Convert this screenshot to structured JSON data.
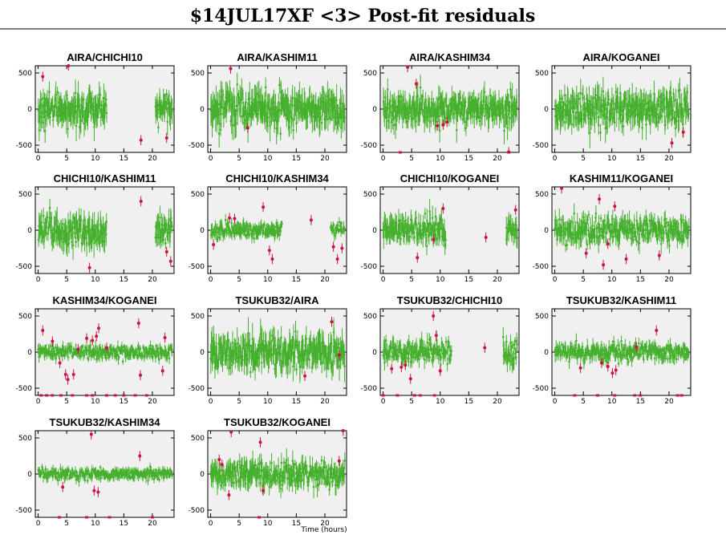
{
  "page": {
    "title": "$14JUL17XF <3> Post-fit residuals"
  },
  "chart_data": {
    "type": "scatter",
    "xlabel": "Time (hours)",
    "xticks": [
      0,
      5,
      10,
      15,
      20
    ],
    "yticks": [
      -500,
      0,
      500
    ],
    "xlim": [
      -0.5,
      23.8
    ],
    "ylim": [
      -600,
      600
    ],
    "grid": false,
    "background": "#f0f0f0",
    "colors": {
      "good": "#44b02c",
      "flagged": "#cc1144"
    },
    "panels": [
      {
        "title": "AIRA/CHICHI10",
        "segments": [
          [
            0,
            12,
            320
          ],
          [
            20.5,
            23.5,
            280
          ]
        ],
        "outliers": [
          [
            0.8,
            450
          ],
          [
            5.3,
            600
          ],
          [
            18,
            -430
          ],
          [
            22.5,
            -400
          ]
        ],
        "edge_bottom": []
      },
      {
        "title": "AIRA/KASHIM11",
        "segments": [
          [
            0,
            23.5,
            340
          ]
        ],
        "outliers": [
          [
            3.5,
            560
          ],
          [
            6.5,
            -260
          ]
        ],
        "edge_bottom": []
      },
      {
        "title": "AIRA/KASHIM34",
        "segments": [
          [
            0,
            23.5,
            300
          ]
        ],
        "outliers": [
          [
            4.3,
            580
          ],
          [
            5.8,
            350
          ],
          [
            9.5,
            -230
          ],
          [
            10.5,
            -220
          ],
          [
            11.2,
            -180
          ],
          [
            22,
            -595
          ]
        ],
        "edge_bottom": [
          3,
          22
        ]
      },
      {
        "title": "AIRA/KOGANEI",
        "segments": [
          [
            0,
            23.5,
            330
          ]
        ],
        "outliers": [
          [
            20.5,
            -470
          ],
          [
            22.5,
            -320
          ]
        ],
        "edge_bottom": []
      },
      {
        "title": "CHICHI10/KASHIM11",
        "segments": [
          [
            0,
            12,
            310
          ],
          [
            20.5,
            23.5,
            280
          ]
        ],
        "outliers": [
          [
            9,
            -520
          ],
          [
            18,
            400
          ],
          [
            22.5,
            -300
          ],
          [
            23.2,
            -430
          ]
        ],
        "edge_bottom": []
      },
      {
        "title": "CHICHI10/KASHIM34",
        "segments": [
          [
            0,
            12.5,
            150
          ],
          [
            21,
            23.5,
            120
          ]
        ],
        "outliers": [
          [
            0.5,
            -200
          ],
          [
            3.3,
            170
          ],
          [
            4.2,
            160
          ],
          [
            9.2,
            320
          ],
          [
            10.3,
            -280
          ],
          [
            10.8,
            -400
          ],
          [
            17.6,
            140
          ],
          [
            21.5,
            -230
          ],
          [
            22.2,
            -400
          ],
          [
            23,
            -250
          ]
        ],
        "edge_bottom": []
      },
      {
        "title": "CHICHI10/KOGANEI",
        "segments": [
          [
            0,
            11,
            260
          ],
          [
            21.5,
            23.5,
            240
          ]
        ],
        "outliers": [
          [
            6,
            -380
          ],
          [
            8.8,
            -130
          ],
          [
            10.5,
            300
          ],
          [
            18,
            -100
          ],
          [
            23.2,
            280
          ]
        ],
        "edge_bottom": []
      },
      {
        "title": "KASHIM11/KOGANEI",
        "segments": [
          [
            0,
            23.5,
            230
          ]
        ],
        "outliers": [
          [
            1.2,
            580
          ],
          [
            5.5,
            -320
          ],
          [
            7.8,
            430
          ],
          [
            8.5,
            -480
          ],
          [
            9.3,
            -190
          ],
          [
            10.5,
            330
          ],
          [
            12.5,
            -400
          ],
          [
            18.3,
            -350
          ]
        ],
        "edge_bottom": []
      },
      {
        "title": "KASHIM34/KOGANEI",
        "segments": [
          [
            0,
            23.5,
            130
          ]
        ],
        "outliers": [
          [
            0.8,
            300
          ],
          [
            2.5,
            150
          ],
          [
            3.8,
            -150
          ],
          [
            4.8,
            -310
          ],
          [
            5.2,
            -380
          ],
          [
            6.2,
            -310
          ],
          [
            7,
            40
          ],
          [
            8.5,
            190
          ],
          [
            9.5,
            160
          ],
          [
            10.2,
            220
          ],
          [
            10.6,
            330
          ],
          [
            12,
            60
          ],
          [
            17.6,
            400
          ],
          [
            17.9,
            -320
          ],
          [
            21.8,
            -260
          ],
          [
            22.2,
            200
          ]
        ],
        "edge_bottom": [
          0.5,
          1.5,
          2.5,
          4,
          6,
          8.5,
          9.5,
          12,
          13.5,
          15,
          17,
          19
        ]
      },
      {
        "title": "TSUKUB32/AIRA",
        "segments": [
          [
            0,
            23.5,
            340
          ]
        ],
        "outliers": [
          [
            16.5,
            -330
          ],
          [
            21.2,
            420
          ],
          [
            22.5,
            -40
          ]
        ],
        "edge_bottom": []
      },
      {
        "title": "TSUKUB32/CHICHI10",
        "segments": [
          [
            0,
            12,
            210
          ],
          [
            21,
            23.5,
            220
          ]
        ],
        "outliers": [
          [
            1.5,
            -230
          ],
          [
            3.2,
            -210
          ],
          [
            3.9,
            -180
          ],
          [
            4.8,
            -370
          ],
          [
            8.8,
            500
          ],
          [
            9.3,
            230
          ],
          [
            10,
            -260
          ],
          [
            17.8,
            60
          ]
        ],
        "edge_bottom": [
          0,
          2.5,
          5.5,
          6.5,
          9
        ]
      },
      {
        "title": "TSUKUB32/KASHIM11",
        "segments": [
          [
            0,
            23.5,
            160
          ]
        ],
        "outliers": [
          [
            4.5,
            -220
          ],
          [
            8.2,
            -150
          ],
          [
            9.3,
            -200
          ],
          [
            10.1,
            -290
          ],
          [
            10.7,
            -250
          ],
          [
            14.3,
            70
          ],
          [
            17.8,
            300
          ]
        ],
        "edge_bottom": [
          3.5,
          7.5,
          10.5,
          14,
          15,
          21.5,
          22.2
        ]
      },
      {
        "title": "TSUKUB32/KASHIM34",
        "segments": [
          [
            0,
            23.5,
            110
          ]
        ],
        "outliers": [
          [
            4.3,
            -180
          ],
          [
            9.3,
            550
          ],
          [
            9.8,
            -230
          ],
          [
            10.5,
            -250
          ],
          [
            17.8,
            250
          ]
        ],
        "edge_bottom": [
          3.7,
          8.5,
          12.5,
          20
        ]
      },
      {
        "title": "TSUKUB32/KOGANEI",
        "segments": [
          [
            0,
            23.5,
            240
          ]
        ],
        "outliers": [
          [
            1.5,
            200
          ],
          [
            2,
            130
          ],
          [
            3.2,
            -290
          ],
          [
            3.6,
            580
          ],
          [
            8.7,
            440
          ],
          [
            9.2,
            -230
          ],
          [
            22.5,
            180
          ],
          [
            23.2,
            600
          ]
        ],
        "edge_bottom": [
          8.5
        ]
      }
    ]
  }
}
